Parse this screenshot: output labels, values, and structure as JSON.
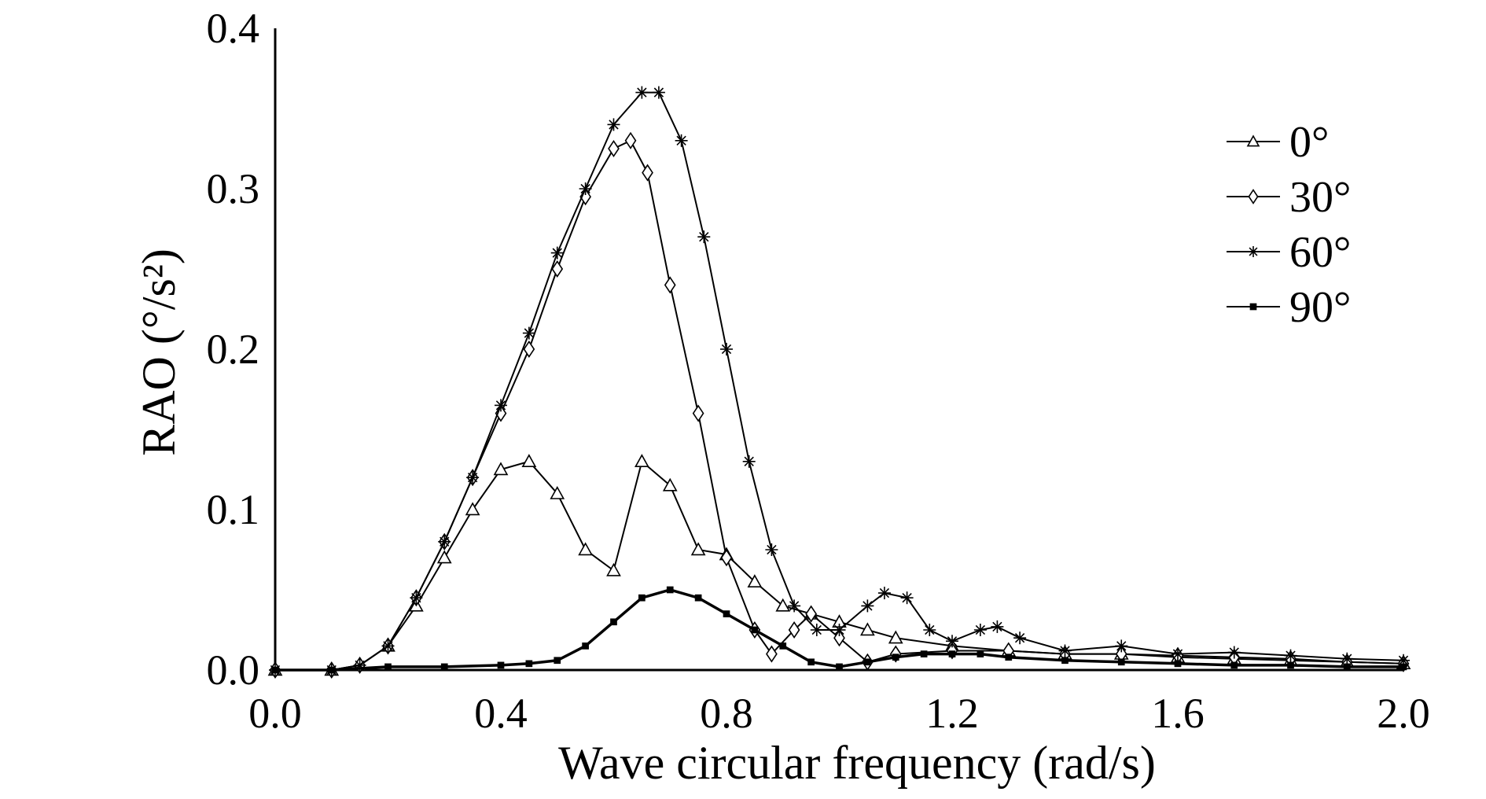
{
  "chart_data": {
    "type": "line",
    "xlabel": "Wave circular frequency (rad/s)",
    "ylabel": "RAO (°/s²)",
    "xlim": [
      0.0,
      2.0
    ],
    "ylim": [
      0.0,
      0.4
    ],
    "x_ticks": [
      "0.0",
      "0.4",
      "0.8",
      "1.2",
      "1.6",
      "2.0"
    ],
    "y_ticks": [
      "0.0",
      "0.1",
      "0.2",
      "0.3",
      "0.4"
    ],
    "grid": false,
    "legend_position": "top-right",
    "series": [
      {
        "name": "0°",
        "marker": "triangle",
        "x": [
          0.0,
          0.1,
          0.15,
          0.2,
          0.25,
          0.3,
          0.35,
          0.4,
          0.45,
          0.5,
          0.55,
          0.6,
          0.65,
          0.7,
          0.75,
          0.8,
          0.85,
          0.9,
          0.95,
          1.0,
          1.05,
          1.1,
          1.2,
          1.3,
          1.4,
          1.5,
          1.6,
          1.7,
          1.8,
          1.9,
          2.0
        ],
        "y": [
          0.0,
          0.0,
          0.003,
          0.015,
          0.04,
          0.07,
          0.1,
          0.125,
          0.13,
          0.11,
          0.075,
          0.062,
          0.13,
          0.115,
          0.075,
          0.072,
          0.055,
          0.04,
          0.035,
          0.03,
          0.025,
          0.02,
          0.015,
          0.012,
          0.01,
          0.01,
          0.008,
          0.007,
          0.006,
          0.005,
          0.004
        ]
      },
      {
        "name": "30°",
        "marker": "diamond",
        "x": [
          0.0,
          0.1,
          0.15,
          0.2,
          0.25,
          0.3,
          0.35,
          0.4,
          0.45,
          0.5,
          0.55,
          0.6,
          0.63,
          0.66,
          0.7,
          0.75,
          0.8,
          0.85,
          0.88,
          0.92,
          0.95,
          1.0,
          1.05,
          1.1,
          1.2,
          1.3,
          1.4,
          1.5,
          1.6,
          1.7,
          1.8,
          1.9,
          2.0
        ],
        "y": [
          0.0,
          0.0,
          0.003,
          0.015,
          0.045,
          0.08,
          0.12,
          0.16,
          0.2,
          0.25,
          0.295,
          0.325,
          0.33,
          0.31,
          0.24,
          0.16,
          0.07,
          0.025,
          0.01,
          0.025,
          0.035,
          0.02,
          0.005,
          0.01,
          0.012,
          0.012,
          0.01,
          0.01,
          0.009,
          0.008,
          0.007,
          0.005,
          0.004
        ]
      },
      {
        "name": "60°",
        "marker": "asterisk",
        "x": [
          0.0,
          0.1,
          0.15,
          0.2,
          0.25,
          0.3,
          0.35,
          0.4,
          0.45,
          0.5,
          0.55,
          0.6,
          0.65,
          0.68,
          0.72,
          0.76,
          0.8,
          0.84,
          0.88,
          0.92,
          0.96,
          1.0,
          1.05,
          1.08,
          1.12,
          1.16,
          1.2,
          1.25,
          1.28,
          1.32,
          1.4,
          1.5,
          1.6,
          1.7,
          1.8,
          1.9,
          2.0
        ],
        "y": [
          0.0,
          0.0,
          0.003,
          0.015,
          0.045,
          0.08,
          0.12,
          0.165,
          0.21,
          0.26,
          0.3,
          0.34,
          0.36,
          0.36,
          0.33,
          0.27,
          0.2,
          0.13,
          0.075,
          0.04,
          0.025,
          0.025,
          0.04,
          0.048,
          0.045,
          0.025,
          0.018,
          0.025,
          0.027,
          0.02,
          0.012,
          0.015,
          0.01,
          0.011,
          0.009,
          0.007,
          0.006
        ]
      },
      {
        "name": "90°",
        "marker": "square",
        "x": [
          0.0,
          0.1,
          0.2,
          0.3,
          0.4,
          0.45,
          0.5,
          0.55,
          0.6,
          0.65,
          0.7,
          0.75,
          0.8,
          0.85,
          0.9,
          0.95,
          1.0,
          1.05,
          1.1,
          1.15,
          1.2,
          1.25,
          1.3,
          1.4,
          1.5,
          1.6,
          1.7,
          1.8,
          1.9,
          2.0
        ],
        "y": [
          0.0,
          0.0,
          0.002,
          0.002,
          0.003,
          0.004,
          0.006,
          0.015,
          0.03,
          0.045,
          0.05,
          0.045,
          0.035,
          0.025,
          0.015,
          0.005,
          0.002,
          0.005,
          0.008,
          0.01,
          0.01,
          0.01,
          0.008,
          0.006,
          0.005,
          0.004,
          0.003,
          0.003,
          0.002,
          0.002
        ]
      }
    ]
  }
}
